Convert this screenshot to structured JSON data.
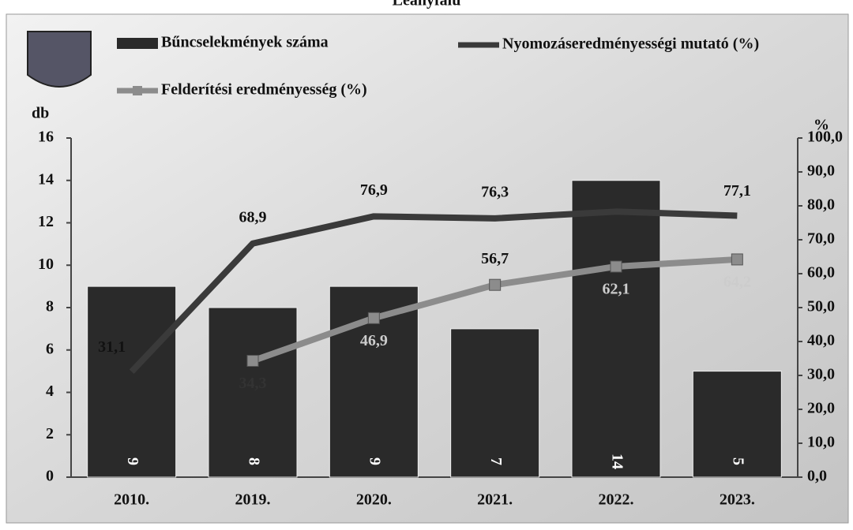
{
  "chart_data": {
    "type": "bar_line",
    "title": "Leányfalu",
    "categories": [
      "2010.",
      "2019.",
      "2020.",
      "2021.",
      "2022.",
      "2023."
    ],
    "ylabel": "db",
    "y2label": "%",
    "ylim": [
      0,
      16
    ],
    "yticks": [
      0,
      2,
      4,
      6,
      8,
      10,
      12,
      14,
      16
    ],
    "y2lim": [
      0,
      100
    ],
    "y2ticks": [
      {
        "value": 0,
        "label": "0,0"
      },
      {
        "value": 10,
        "label": "10,0"
      },
      {
        "value": 20,
        "label": "20,0"
      },
      {
        "value": 30,
        "label": "30,0"
      },
      {
        "value": 40,
        "label": "40,0"
      },
      {
        "value": 50,
        "label": "50,0"
      },
      {
        "value": 60,
        "label": "60,0"
      },
      {
        "value": 70,
        "label": "70,0"
      },
      {
        "value": 80,
        "label": "80,0"
      },
      {
        "value": 90,
        "label": "90,0"
      },
      {
        "value": 100,
        "label": "100,0"
      }
    ],
    "series": [
      {
        "name": "Bűncselekmények száma",
        "type": "bar",
        "color": "#2a2a2a",
        "values": [
          9,
          8,
          9,
          7,
          14,
          5
        ]
      },
      {
        "name": "Nyomozáseredményességi mutató (%)",
        "type": "line",
        "axis": "y2",
        "color": "#3a3a3a",
        "values": [
          31.1,
          68.9,
          76.9,
          76.3,
          78.3,
          77.1
        ],
        "value_labels": [
          "31,1",
          "68,9",
          "76,9",
          "76,3",
          null,
          "77,1"
        ]
      },
      {
        "name": "Felderítési eredményesség (%)",
        "type": "line",
        "axis": "y2",
        "color": "#8c8c8c",
        "marker": "square",
        "values": [
          null,
          34.3,
          46.9,
          56.7,
          62.1,
          64.2
        ],
        "value_labels": [
          null,
          "34,3",
          "46,9",
          "56,7",
          "62,1",
          "64,2"
        ]
      }
    ]
  }
}
